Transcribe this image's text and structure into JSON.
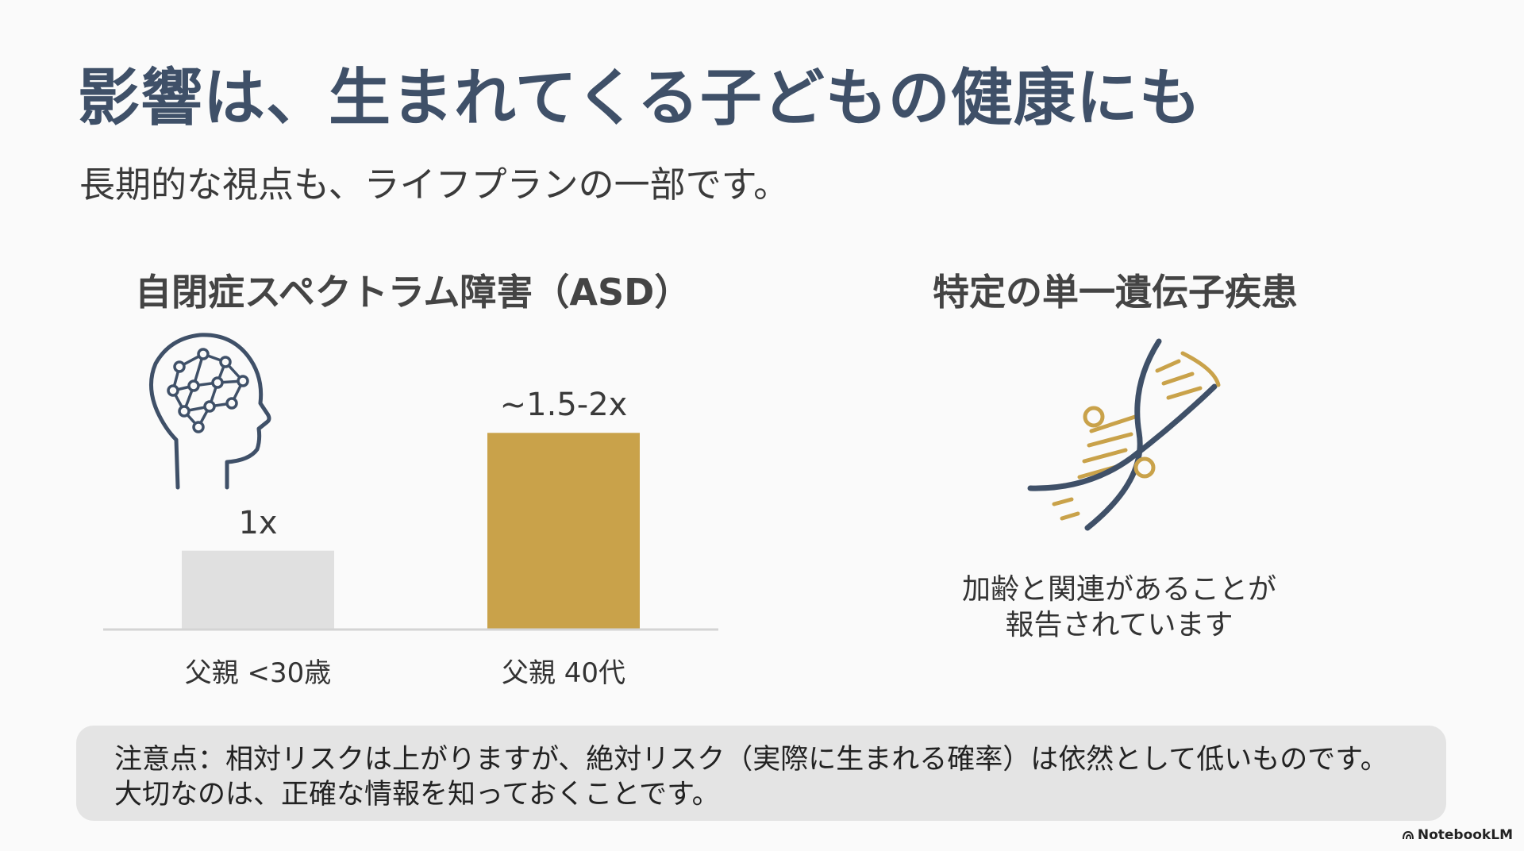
{
  "slide": {
    "title": "影響は、生まれてくる子どもの健康にも",
    "subtitle": "長期的な視点も、ライフプランの一部です。"
  },
  "asd_panel": {
    "heading": "自閉症スペクトラム障害（ASD）",
    "icon": "brain-network-icon"
  },
  "chart_data": {
    "type": "bar",
    "categories": [
      "父親 <30歳",
      "父親 40代"
    ],
    "values": [
      1,
      1.75
    ],
    "data_labels": [
      "1x",
      "~1.5-2x"
    ],
    "colors": [
      "#e0e0e0",
      "#c9a24a"
    ],
    "ylim": [
      0,
      1.8
    ],
    "grid": false
  },
  "gene_panel": {
    "heading": "特定の単一遺伝子疾患",
    "icon": "dna-icon",
    "note_line1": "加齢と関連があることが",
    "note_line2": "報告されています"
  },
  "caution": {
    "line1": "注意点：相対リスクは上がりますが、絶対リスク（実際に生まれる確率）は依然として低いものです。",
    "line2": "大切なのは、正確な情報を知っておくことです。"
  },
  "branding": {
    "label": "NotebookLM"
  },
  "colors": {
    "title": "#3f5068",
    "accent_gold": "#c9a24a",
    "bar_gray": "#e0e0e0",
    "icon_navy": "#3f5068"
  }
}
